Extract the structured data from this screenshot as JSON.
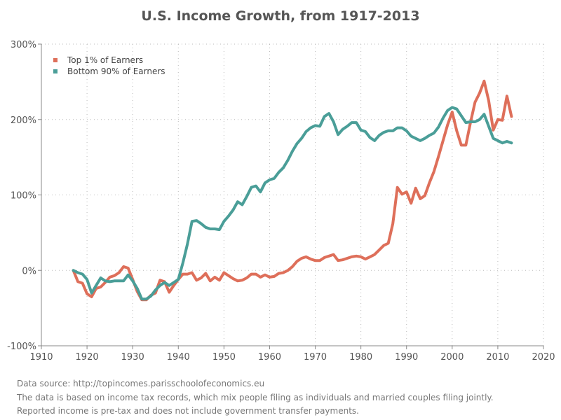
{
  "chart_data": {
    "type": "line",
    "title": "U.S. Income Growth, from 1917-2013",
    "xlabel": "",
    "ylabel": "",
    "xlim": [
      1910,
      2020
    ],
    "ylim": [
      -100,
      300
    ],
    "x_ticks": [
      "1910",
      "1920",
      "1930",
      "1940",
      "1950",
      "1960",
      "1970",
      "1980",
      "1990",
      "2000",
      "2010",
      "2020"
    ],
    "y_ticks": [
      "-100%",
      "0%",
      "100%",
      "200%",
      "300%"
    ],
    "grid": true,
    "legend_position": "top-left",
    "x_start": 1917,
    "series": [
      {
        "name": "Top 1% of Earners",
        "color": "#de6f5a",
        "values": [
          0,
          -15,
          -17,
          -31,
          -35,
          -24,
          -22,
          -16,
          -9,
          -7,
          -3,
          5,
          3,
          -12,
          -28,
          -39,
          -39,
          -33,
          -30,
          -13,
          -15,
          -29,
          -20,
          -12,
          -5,
          -5,
          -3,
          -13,
          -10,
          -4,
          -14,
          -9,
          -13,
          -3,
          -7,
          -11,
          -14,
          -13,
          -10,
          -5,
          -5,
          -9,
          -6,
          -9,
          -8,
          -4,
          -3,
          0,
          5,
          12,
          16,
          18,
          15,
          13,
          13,
          17,
          19,
          21,
          13,
          14,
          16,
          18,
          19,
          18,
          15,
          18,
          21,
          27,
          33,
          36,
          62,
          110,
          101,
          104,
          89,
          109,
          95,
          99,
          116,
          131,
          151,
          172,
          193,
          210,
          185,
          166,
          166,
          196,
          223,
          235,
          251,
          225,
          186,
          200,
          199,
          231,
          204
        ]
      },
      {
        "name": "Bottom 90% of Earners",
        "color": "#4a9e98",
        "values": [
          0,
          -3,
          -5,
          -12,
          -30,
          -20,
          -10,
          -14,
          -15,
          -14,
          -14,
          -14,
          -6,
          -14,
          -24,
          -38,
          -38,
          -34,
          -26,
          -20,
          -16,
          -20,
          -16,
          -12,
          10,
          35,
          65,
          66,
          62,
          57,
          55,
          55,
          54,
          65,
          72,
          80,
          91,
          87,
          98,
          110,
          112,
          104,
          116,
          120,
          122,
          130,
          136,
          146,
          158,
          168,
          175,
          184,
          189,
          192,
          191,
          204,
          208,
          197,
          180,
          187,
          191,
          196,
          196,
          186,
          184,
          176,
          172,
          179,
          183,
          185,
          185,
          189,
          189,
          185,
          178,
          175,
          172,
          175,
          179,
          182,
          190,
          202,
          212,
          216,
          214,
          205,
          196,
          197,
          197,
          200,
          207,
          191,
          175,
          172,
          169,
          171,
          169
        ]
      }
    ]
  },
  "footer": {
    "line1": "Data source: http://topincomes.parisschoolofeconomics.eu",
    "line2": "The data is based on income tax records, which mix people filing as individuals and married couples filing jointly.",
    "line3": "Reported income is pre-tax and does not include government transfer payments."
  }
}
